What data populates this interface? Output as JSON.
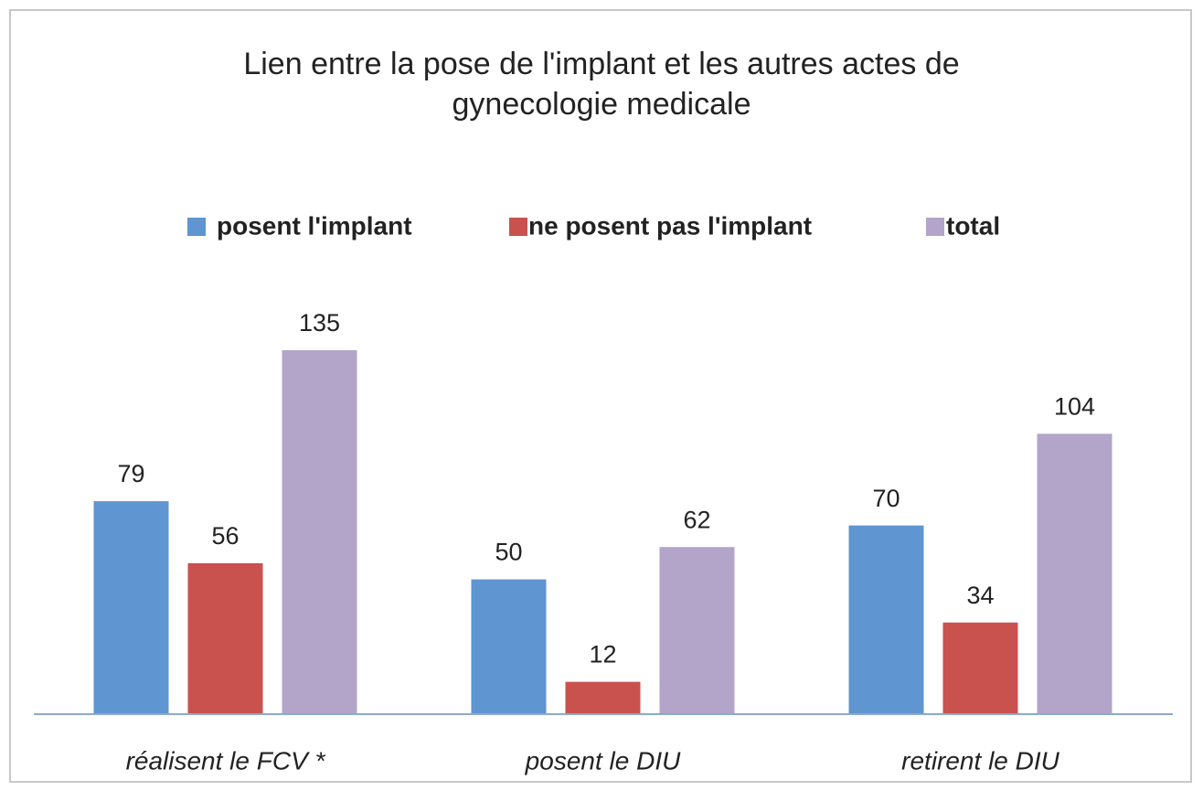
{
  "chart_data": {
    "type": "bar",
    "title": "Lien entre la pose de l'implant et les autres actes de gynecologie medicale",
    "categories": [
      "réalisent le FCV *",
      "posent le DIU",
      "retirent le DIU"
    ],
    "series": [
      {
        "name": "posent l'implant",
        "color": "#5f95d0",
        "values": [
          79,
          50,
          70
        ]
      },
      {
        "name": "ne posent pas l'implant",
        "color": "#c9524f",
        "values": [
          56,
          12,
          34
        ]
      },
      {
        "name": "total",
        "color": "#b3a4c9",
        "values": [
          135,
          62,
          104
        ]
      }
    ],
    "legend": "top"
  }
}
